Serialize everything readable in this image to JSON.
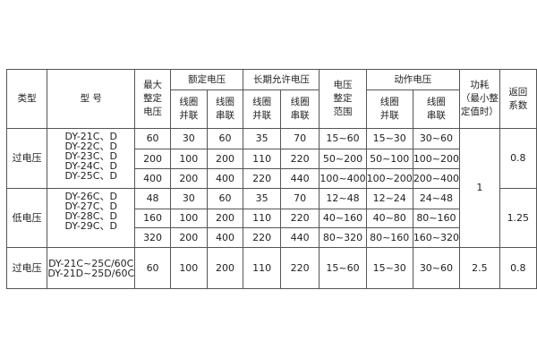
{
  "headers": {
    "type": "类型",
    "model": "型 号",
    "max_setting": [
      "最大",
      "整定",
      "电压"
    ],
    "rated": "额定电压",
    "long_term": "长期允许电压",
    "setting_range": [
      "电压",
      "整定",
      "范围"
    ],
    "action": "动作电压",
    "coil_parallel": [
      "线圈",
      "并联"
    ],
    "coil_series": [
      "线圈",
      "串联"
    ],
    "power": [
      "功耗",
      "（最小整",
      "定值时）"
    ],
    "return_coef": [
      "返回",
      "系数"
    ]
  },
  "groups": [
    {
      "type": "过电压",
      "models": [
        "DY-21C、D",
        "DY-22C、D",
        "DY-23C、D",
        "DY-24C、D",
        "DY-25C、D"
      ],
      "return_coef": "0.8",
      "rows": [
        [
          "60",
          "30",
          "60",
          "35",
          "70",
          "15~60",
          "15~30",
          "30~60"
        ],
        [
          "200",
          "100",
          "200",
          "110",
          "220",
          "50~200",
          "50~100",
          "100~200"
        ],
        [
          "400",
          "200",
          "400",
          "220",
          "440",
          "100~400",
          "100~200",
          "200~400"
        ]
      ]
    },
    {
      "type": "低电压",
      "models": [
        "DY-26C、D",
        "DY-27C、D",
        "DY-28C、D",
        "DY-29C、D"
      ],
      "return_coef": "1.25",
      "rows": [
        [
          "48",
          "30",
          "60",
          "35",
          "70",
          "12~48",
          "12~24",
          "24~48"
        ],
        [
          "160",
          "100",
          "200",
          "110",
          "220",
          "40~160",
          "40~80",
          "80~160"
        ],
        [
          "320",
          "200",
          "400",
          "220",
          "440",
          "80~320",
          "80~160",
          "160~320"
        ]
      ]
    },
    {
      "type": "过电压",
      "models": [
        "DY-21C~25C/60C",
        "DY-21D~25D/60C"
      ],
      "return_coef": "0.8",
      "power": "2.5",
      "rows": [
        [
          "60",
          "100",
          "200",
          "110",
          "220",
          "15~60",
          "15~30",
          "30~60"
        ]
      ]
    }
  ],
  "power_shared": "1"
}
